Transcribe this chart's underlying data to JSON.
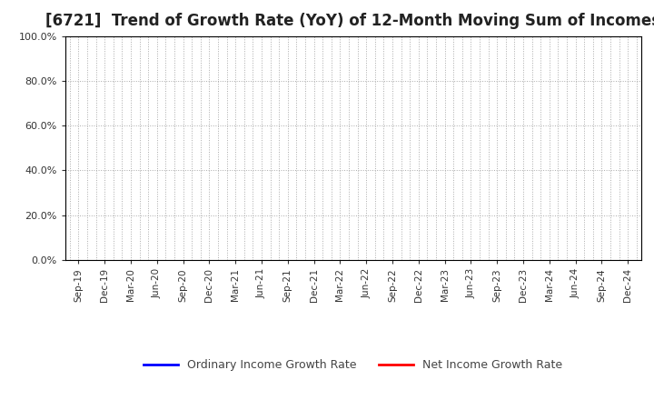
{
  "title": "[6721]  Trend of Growth Rate (YoY) of 12-Month Moving Sum of Incomes",
  "title_fontsize": 12,
  "background_color": "#ffffff",
  "grid_color": "#aaaaaa",
  "ylim": [
    0.0,
    1.0
  ],
  "yticks": [
    0.0,
    0.2,
    0.4,
    0.6,
    0.8,
    1.0
  ],
  "x_labels": [
    "Sep-19",
    "Dec-19",
    "Mar-20",
    "Jun-20",
    "Sep-20",
    "Dec-20",
    "Mar-21",
    "Jun-21",
    "Sep-21",
    "Dec-21",
    "Mar-22",
    "Jun-22",
    "Sep-22",
    "Dec-22",
    "Mar-23",
    "Jun-23",
    "Sep-23",
    "Dec-23",
    "Mar-24",
    "Jun-24",
    "Sep-24",
    "Dec-24"
  ],
  "ordinary_income_color": "#0000ff",
  "net_income_color": "#ff0000",
  "legend_labels": [
    "Ordinary Income Growth Rate",
    "Net Income Growth Rate"
  ],
  "line_width": 1.5
}
